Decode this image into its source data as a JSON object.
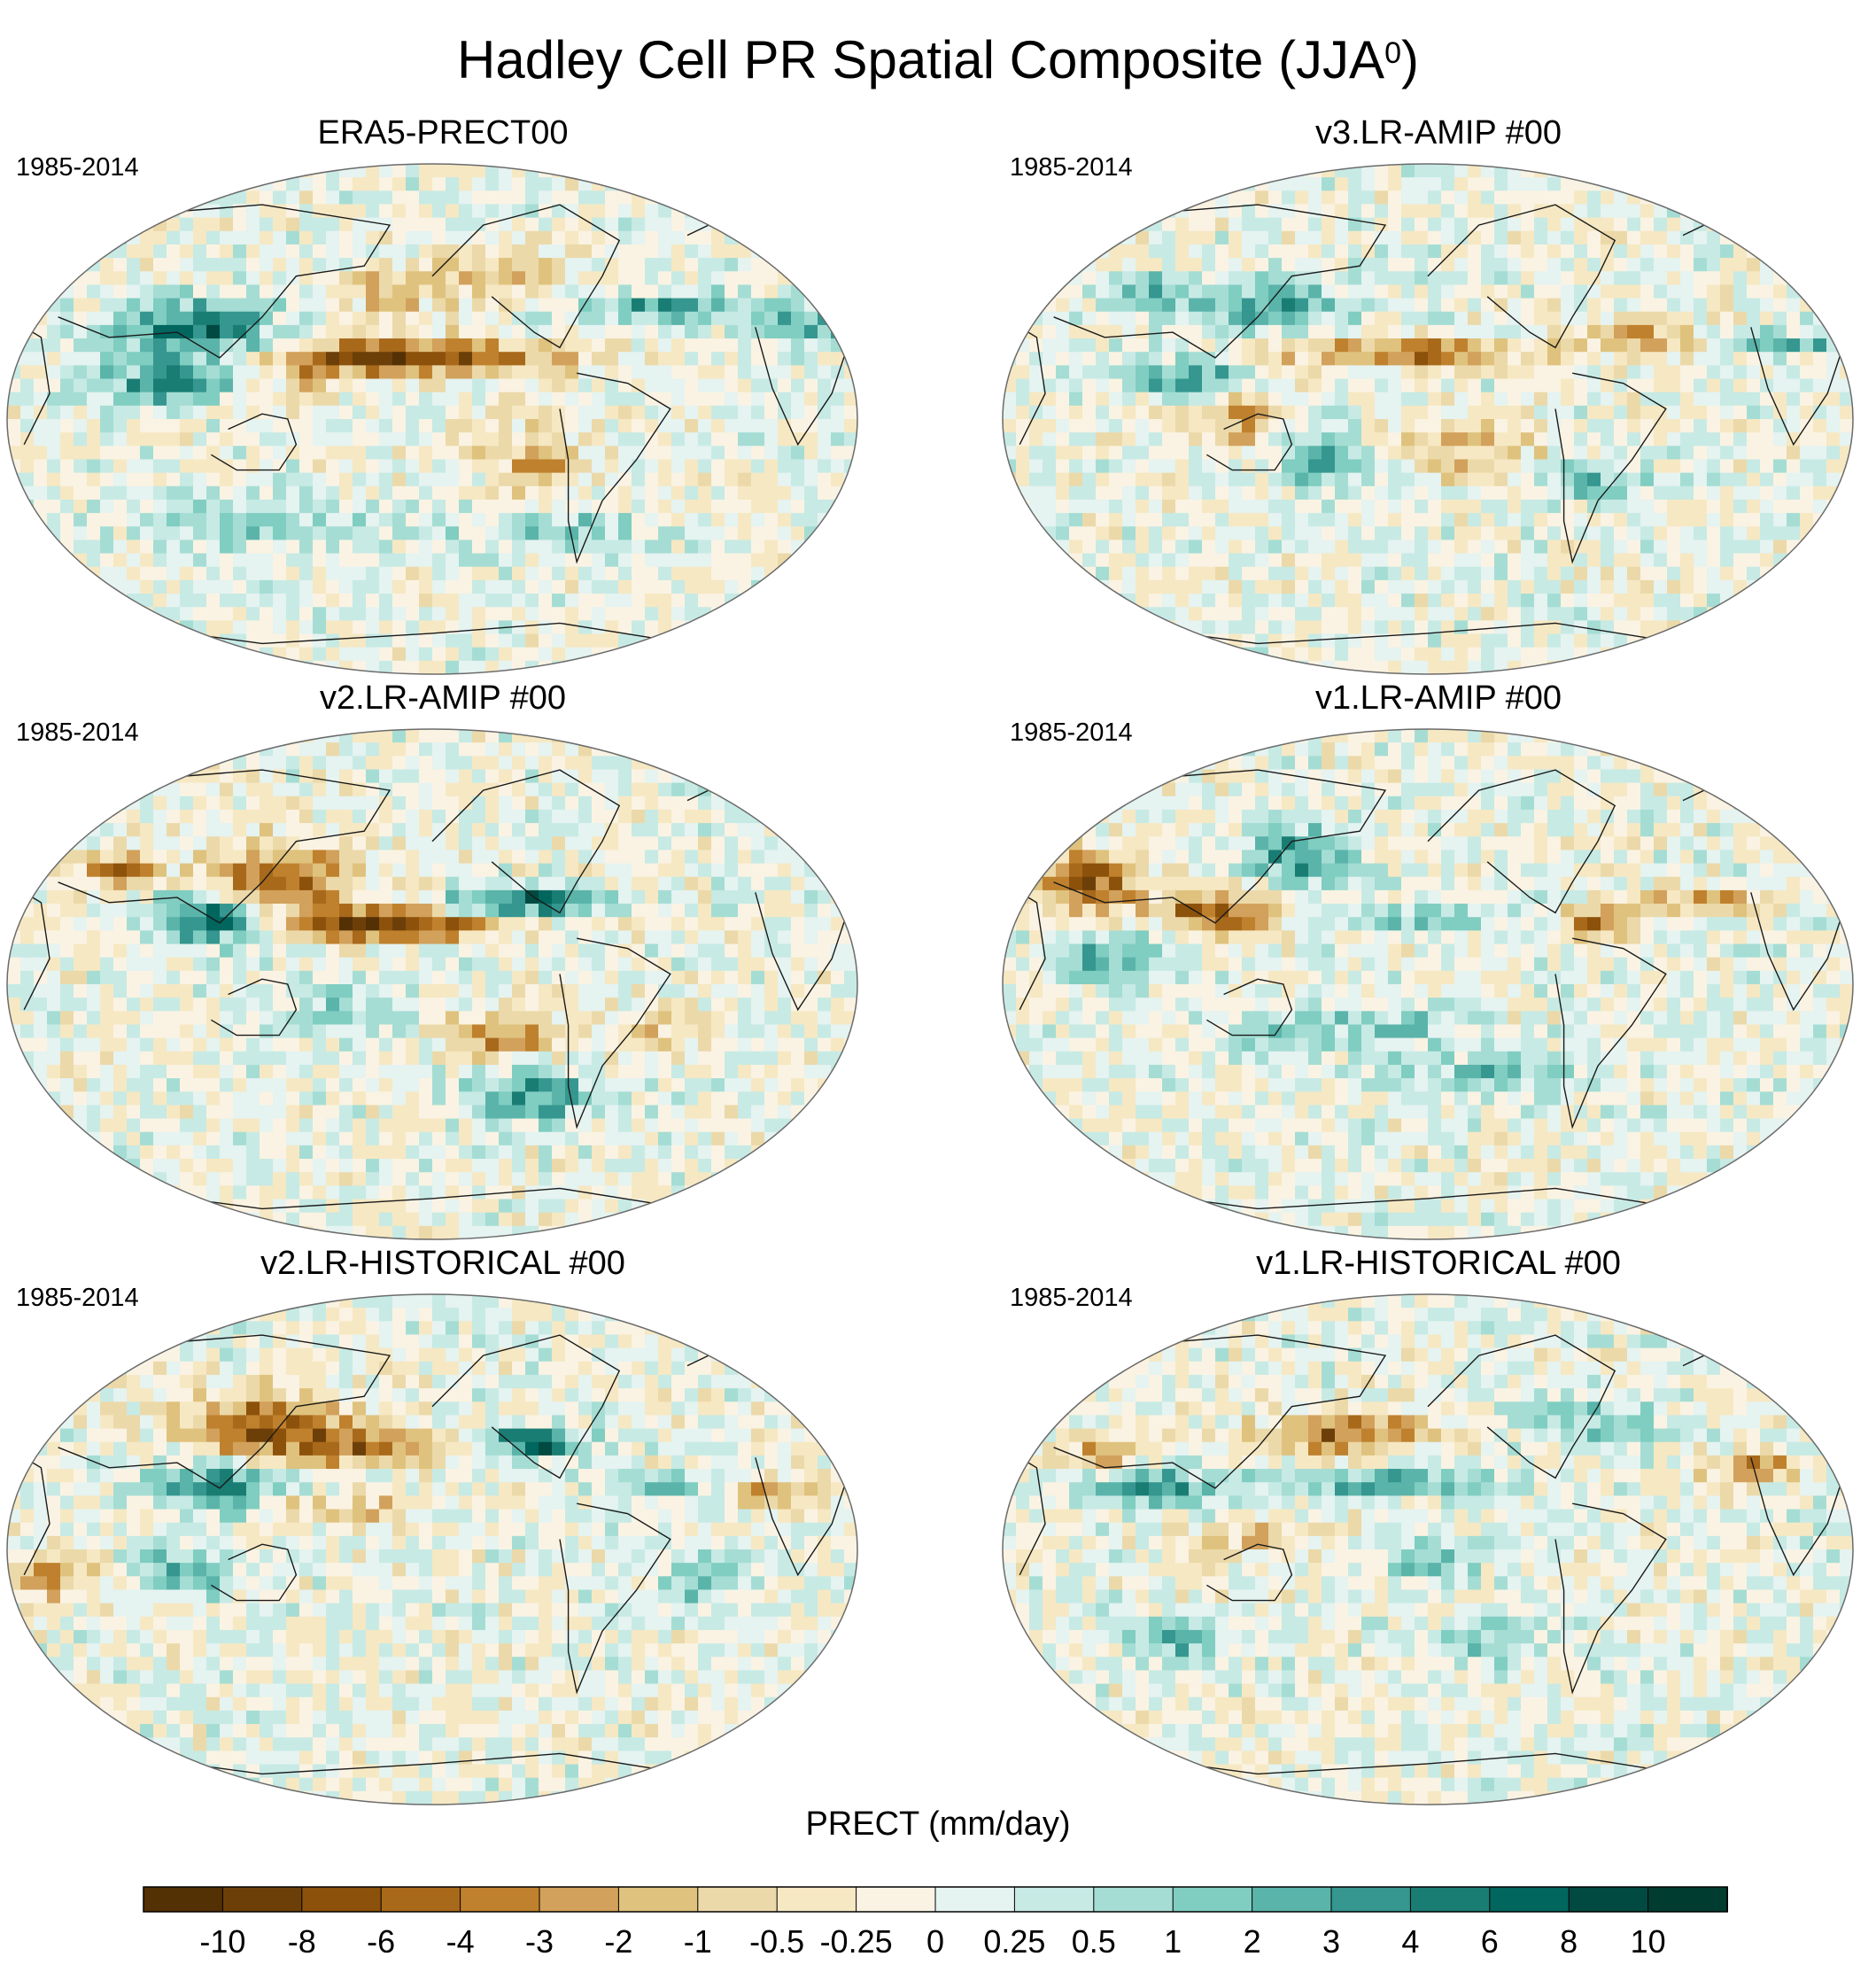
{
  "title_main": "Hadley Cell PR Spatial Composite (JJA",
  "title_sup": "0",
  "title_tail": ")",
  "panels": [
    {
      "title": "ERA5-PRECT00",
      "period": "1985-2014"
    },
    {
      "title": "v3.LR-AMIP  #00",
      "period": "1985-2014"
    },
    {
      "title": "v2.LR-AMIP  #00",
      "period": "1985-2014"
    },
    {
      "title": "v1.LR-AMIP  #00",
      "period": "1985-2014"
    },
    {
      "title": "v2.LR-HISTORICAL  #00",
      "period": "1985-2014"
    },
    {
      "title": "v1.LR-HISTORICAL  #00",
      "period": "1985-2014"
    }
  ],
  "colorbar": {
    "label": "PRECT (mm/day)",
    "ticks": [
      "-10",
      "-8",
      "-6",
      "-4",
      "-3",
      "-2",
      "-1",
      "-0.5",
      "-0.25",
      "0",
      "0.25",
      "0.5",
      "1",
      "2",
      "3",
      "4",
      "6",
      "8",
      "10"
    ],
    "colors": [
      "#543005",
      "#6d3f08",
      "#8c510a",
      "#a8691b",
      "#bf812d",
      "#d2a15b",
      "#dfc27d",
      "#ecd9a9",
      "#f6e8c3",
      "#faf3e3",
      "#e5f3f1",
      "#c7eae5",
      "#a5ddd4",
      "#80cdc1",
      "#5ab4aa",
      "#35978f",
      "#1a7d74",
      "#01665e",
      "#014a41",
      "#003c30"
    ]
  }
}
